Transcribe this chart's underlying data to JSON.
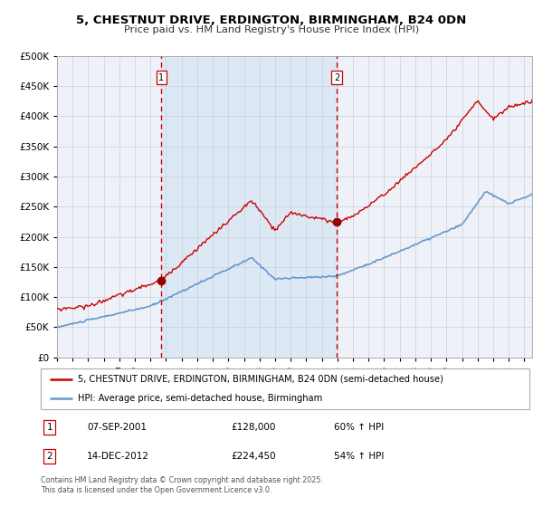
{
  "title1": "5, CHESTNUT DRIVE, ERDINGTON, BIRMINGHAM, B24 0DN",
  "title2": "Price paid vs. HM Land Registry's House Price Index (HPI)",
  "legend_line1": "5, CHESTNUT DRIVE, ERDINGTON, BIRMINGHAM, B24 0DN (semi-detached house)",
  "legend_line2": "HPI: Average price, semi-detached house, Birmingham",
  "annotation1_date": "07-SEP-2001",
  "annotation1_price": "£128,000",
  "annotation1_hpi": "60% ↑ HPI",
  "annotation2_date": "14-DEC-2012",
  "annotation2_price": "£224,450",
  "annotation2_hpi": "54% ↑ HPI",
  "footer": "Contains HM Land Registry data © Crown copyright and database right 2025.\nThis data is licensed under the Open Government Licence v3.0.",
  "vline1_year": 2001.69,
  "vline2_year": 2012.95,
  "marker1_year": 2001.69,
  "marker1_value": 128000,
  "marker2_year": 2012.95,
  "marker2_value": 224450,
  "shaded_start": 2001.69,
  "shaded_end": 2012.95,
  "red_line_color": "#cc0000",
  "blue_line_color": "#6699cc",
  "shaded_color": "#dce9f5",
  "background_color": "#eef2f8",
  "grid_color": "#c8d0dc",
  "ylim": [
    0,
    500000
  ],
  "xlim_start": 1995.0,
  "xlim_end": 2025.5
}
